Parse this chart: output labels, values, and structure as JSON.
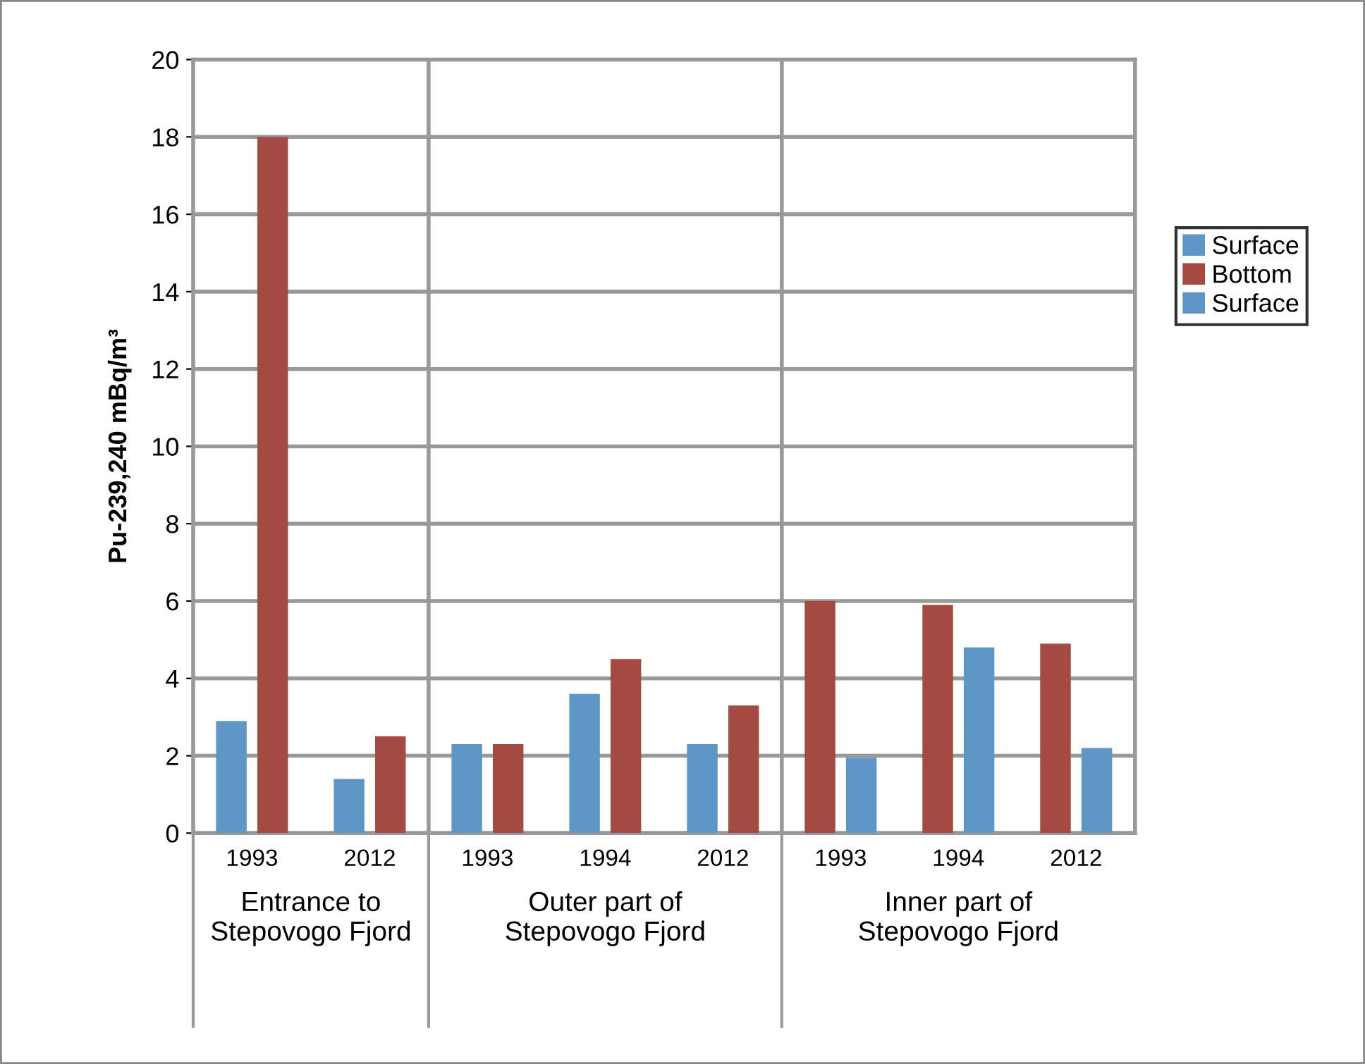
{
  "chart_data": {
    "type": "bar",
    "ylabel": "Pu-239,240 mBq/m³",
    "categories": [
      "1993",
      "2012",
      "1993",
      "1994",
      "2012",
      "1993",
      "1994",
      "2012"
    ],
    "series": [
      {
        "name": "Surface",
        "color": "#5f96c8",
        "values": [
          2.9,
          1.4,
          2.3,
          3.6,
          2.3,
          null,
          null,
          null
        ]
      },
      {
        "name": "Bottom",
        "color": "#a44a42",
        "values": [
          18,
          2.5,
          2.3,
          4.5,
          3.3,
          6.0,
          5.9,
          4.9
        ]
      },
      {
        "name": "Surface",
        "color": "#5f96c8",
        "values": [
          null,
          null,
          null,
          null,
          null,
          1.95,
          4.8,
          2.2
        ]
      }
    ],
    "annotations": [
      "Entrance to Stepovogo Fjord",
      "Outer part of Stepovogo Fjord",
      "Inner part of Stepovogo Fjord"
    ],
    "ylim": [
      0,
      20
    ],
    "yticks": [
      0,
      2,
      4,
      6,
      8,
      10,
      12,
      14,
      16,
      18,
      20
    ],
    "grid": "y",
    "legend": "right"
  }
}
